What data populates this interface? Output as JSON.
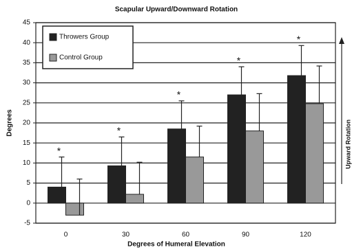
{
  "chart_data": {
    "type": "bar",
    "title": "Scapular Upward/Downward Rotation",
    "x_label": "Degrees of Humeral Elevation",
    "y_label": "Degrees",
    "annotation": "Upward Rotation",
    "significance_marker": "*",
    "categories": [
      "0",
      "30",
      "60",
      "90",
      "120"
    ],
    "series": [
      {
        "name": "Throwers Group",
        "color": "#222222",
        "values": [
          4,
          9.3,
          18.5,
          27,
          31.8
        ],
        "errors": [
          7.5,
          7.2,
          7,
          7,
          7.5
        ]
      },
      {
        "name": "Control Group",
        "color": "#999999",
        "values": [
          -3,
          2.2,
          11.5,
          18,
          24.8
        ],
        "errors": [
          9,
          8,
          7.7,
          9.3,
          9.4
        ]
      }
    ],
    "ylim": [
      -5,
      45
    ],
    "yticks": [
      -5,
      0,
      5,
      10,
      15,
      20,
      25,
      30,
      35,
      40,
      45
    ],
    "grid": true,
    "legend": "top-left"
  }
}
